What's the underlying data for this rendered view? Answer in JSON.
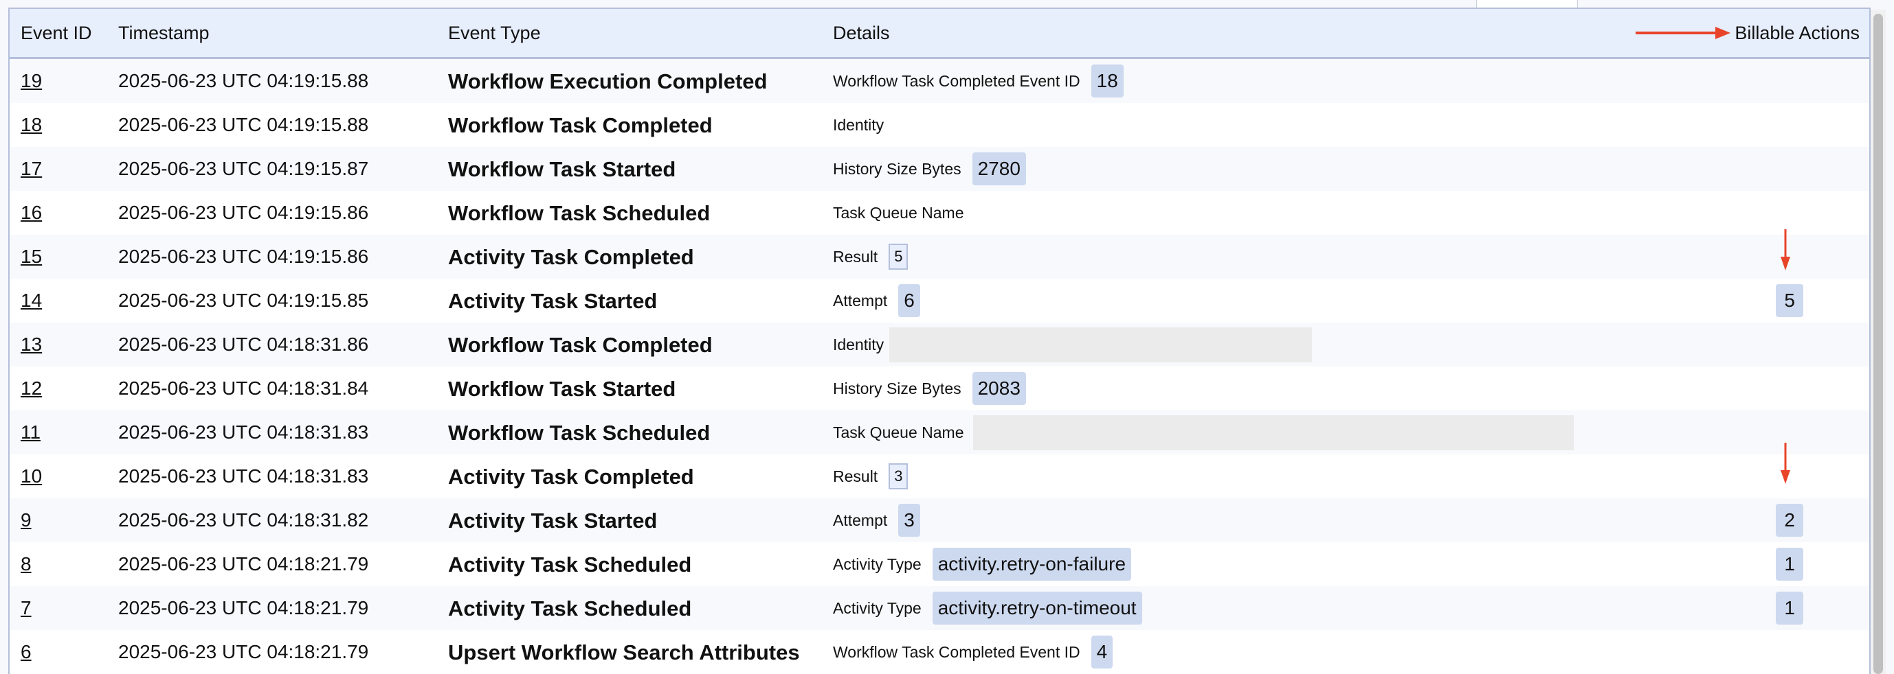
{
  "header": {
    "event_id": "Event ID",
    "timestamp": "Timestamp",
    "event_type": "Event Type",
    "details": "Details",
    "billable_actions": "Billable Actions"
  },
  "annotation_color": "#e8442a",
  "rows": [
    {
      "id": "19",
      "timestamp": "2025-06-23 UTC 04:19:15.88",
      "type": "Workflow Execution Completed",
      "detail_label": "Workflow Task Completed Event ID",
      "detail_value": "18",
      "style": "badge",
      "billable": ""
    },
    {
      "id": "18",
      "timestamp": "2025-06-23 UTC 04:19:15.88",
      "type": "Workflow Task Completed",
      "detail_label": "Identity",
      "detail_value": "",
      "style": "none",
      "billable": ""
    },
    {
      "id": "17",
      "timestamp": "2025-06-23 UTC 04:19:15.87",
      "type": "Workflow Task Started",
      "detail_label": "History Size Bytes",
      "detail_value": "2780",
      "style": "badge",
      "billable": ""
    },
    {
      "id": "16",
      "timestamp": "2025-06-23 UTC 04:19:15.86",
      "type": "Workflow Task Scheduled",
      "detail_label": "Task Queue Name",
      "detail_value": "",
      "style": "none",
      "billable": ""
    },
    {
      "id": "15",
      "timestamp": "2025-06-23 UTC 04:19:15.86",
      "type": "Activity Task Completed",
      "detail_label": "Result",
      "detail_value": "5",
      "style": "boxed",
      "billable": ""
    },
    {
      "id": "14",
      "timestamp": "2025-06-23 UTC 04:19:15.85",
      "type": "Activity Task Started",
      "detail_label": "Attempt",
      "detail_value": "6",
      "style": "badge",
      "billable": "5"
    },
    {
      "id": "13",
      "timestamp": "2025-06-23 UTC 04:18:31.86",
      "type": "Workflow Task Completed",
      "detail_label": "Identity",
      "detail_value": "",
      "style": "redacted-short",
      "billable": ""
    },
    {
      "id": "12",
      "timestamp": "2025-06-23 UTC 04:18:31.84",
      "type": "Workflow Task Started",
      "detail_label": "History Size Bytes",
      "detail_value": "2083",
      "style": "badge",
      "billable": ""
    },
    {
      "id": "11",
      "timestamp": "2025-06-23 UTC 04:18:31.83",
      "type": "Workflow Task Scheduled",
      "detail_label": "Task Queue Name",
      "detail_value": "",
      "style": "redacted-long",
      "billable": ""
    },
    {
      "id": "10",
      "timestamp": "2025-06-23 UTC 04:18:31.83",
      "type": "Activity Task Completed",
      "detail_label": "Result",
      "detail_value": "3",
      "style": "boxed",
      "billable": ""
    },
    {
      "id": "9",
      "timestamp": "2025-06-23 UTC 04:18:31.82",
      "type": "Activity Task Started",
      "detail_label": "Attempt",
      "detail_value": "3",
      "style": "badge",
      "billable": "2"
    },
    {
      "id": "8",
      "timestamp": "2025-06-23 UTC 04:18:21.79",
      "type": "Activity Task Scheduled",
      "detail_label": "Activity Type",
      "detail_value": "activity.retry-on-failure",
      "style": "badge",
      "billable": "1"
    },
    {
      "id": "7",
      "timestamp": "2025-06-23 UTC 04:18:21.79",
      "type": "Activity Task Scheduled",
      "detail_label": "Activity Type",
      "detail_value": "activity.retry-on-timeout",
      "style": "badge",
      "billable": "1"
    },
    {
      "id": "6",
      "timestamp": "2025-06-23 UTC 04:18:21.79",
      "type": "Upsert Workflow Search Attributes",
      "detail_label": "Workflow Task Completed Event ID",
      "detail_value": "4",
      "style": "badge",
      "billable": ""
    }
  ]
}
